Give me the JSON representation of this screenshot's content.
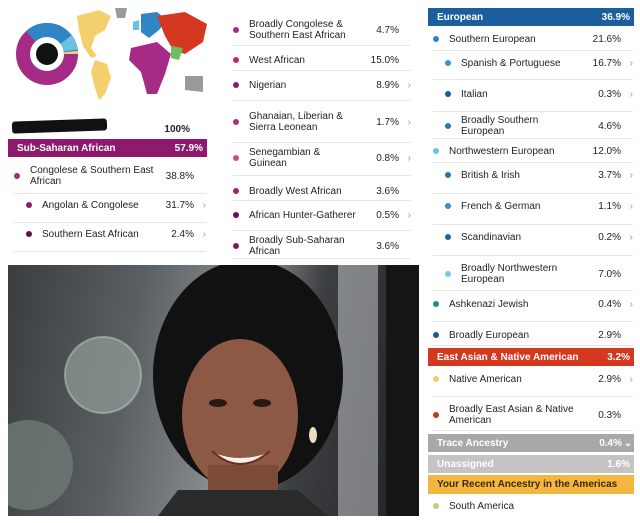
{
  "colors": {
    "sub_saharan": "#8e1a6e",
    "european": "#1a5e9e",
    "east_asian": "#d4381f",
    "trace": "#a8a8a8",
    "unassigned": "#c4c4c4",
    "recent_americas": "#f4b63f"
  },
  "left_panel": {
    "total_pct": "100%",
    "sub_saharan": {
      "label": "Sub-Saharan African",
      "pct": "57.9%"
    },
    "rows": [
      {
        "label": "Congolese & Southern East African",
        "pct": "38.8%",
        "color": "#a62b86",
        "chevron": false
      },
      {
        "label": "Angolan & Congolese",
        "pct": "31.7%",
        "color": "#8c1c6e",
        "chevron": true
      },
      {
        "label": "Southern East African",
        "pct": "2.4%",
        "color": "#5e1048",
        "chevron": true
      }
    ]
  },
  "middle_panel": {
    "rows": [
      {
        "label": "Broadly Congolese & Southern East African",
        "pct": "4.7%",
        "color": "#a62b86",
        "chevron": false
      },
      {
        "label": "West African",
        "pct": "15.0%",
        "color": "#c2246e",
        "chevron": false
      },
      {
        "label": "Nigerian",
        "pct": "8.9%",
        "color": "#8c1c6e",
        "chevron": true
      },
      {
        "label": "Ghanaian, Liberian & Sierra Leonean",
        "pct": "1.7%",
        "color": "#b0317e",
        "chevron": true
      },
      {
        "label": "Senegambian & Guinean",
        "pct": "0.8%",
        "color": "#d04a8c",
        "chevron": true
      },
      {
        "label": "Broadly West African",
        "pct": "3.6%",
        "color": "#a0226e",
        "chevron": false
      },
      {
        "label": "African Hunter-Gatherer",
        "pct": "0.5%",
        "color": "#6a0f52",
        "chevron": true
      },
      {
        "label": "Broadly Sub-Saharan African",
        "pct": "3.6%",
        "color": "#7e1a62",
        "chevron": false
      }
    ]
  },
  "right_panel": {
    "european": {
      "label": "European",
      "pct": "36.9%"
    },
    "european_rows": [
      {
        "label": "Southern European",
        "pct": "21.6%",
        "color": "#2f86c6",
        "chevron": false
      },
      {
        "label": "Spanish & Portuguese",
        "pct": "16.7%",
        "color": "#3c93d3",
        "chevron": true
      },
      {
        "label": "Italian",
        "pct": "0.3%",
        "color": "#1d5c93",
        "chevron": true
      },
      {
        "label": "Broadly Southern European",
        "pct": "4.6%",
        "color": "#2878b4",
        "chevron": false
      },
      {
        "label": "Northwestern European",
        "pct": "12.0%",
        "color": "#6ac1e6",
        "chevron": false
      },
      {
        "label": "British & Irish",
        "pct": "3.7%",
        "color": "#2a72a8",
        "chevron": true
      },
      {
        "label": "French & German",
        "pct": "1.1%",
        "color": "#3b8cc0",
        "chevron": true
      },
      {
        "label": "Scandinavian",
        "pct": "0.2%",
        "color": "#1c6a8e",
        "chevron": true
      },
      {
        "label": "Broadly Northwestern European",
        "pct": "7.0%",
        "color": "#7cc5e6",
        "chevron": false
      },
      {
        "label": "Ashkenazi Jewish",
        "pct": "0.4%",
        "color": "#1c8c8e",
        "chevron": true
      },
      {
        "label": "Broadly European",
        "pct": "2.9%",
        "color": "#1d5a8c",
        "chevron": false
      }
    ],
    "east_asian": {
      "label": "East Asian & Native American",
      "pct": "3.2%"
    },
    "east_asian_rows": [
      {
        "label": "Native American",
        "pct": "2.9%",
        "color": "#f3cf6e",
        "chevron": true
      },
      {
        "label": "Broadly East Asian & Native American",
        "pct": "0.3%",
        "color": "#c53a1f",
        "chevron": false
      }
    ],
    "trace": {
      "label": "Trace Ancestry",
      "pct": "0.4%"
    },
    "unassigned": {
      "label": "Unassigned",
      "pct": "1.6%"
    },
    "recent": {
      "label": "Your Recent Ancestry in the Americas"
    },
    "recent_rows": [
      {
        "label": "South America",
        "pct": "",
        "color": "#b9d27a",
        "chevron": false
      }
    ]
  }
}
